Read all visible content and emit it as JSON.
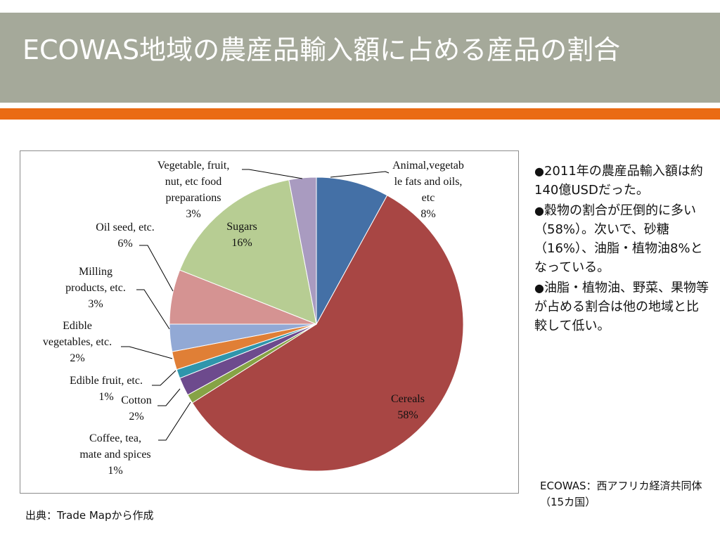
{
  "slide": {
    "title": "ECOWAS地域の農産品輸入額に占める産品の割合",
    "bullets": [
      "2011年の農産品輸入額は約140億USDだった。",
      "穀物の割合が圧倒的に多い（58%）。次いで、砂糖（16%）、油脂・植物油8%となっている。",
      "油脂・植物油、野菜、果物等が占める割合は他の地域と比較して低い。"
    ],
    "bullet_marker": "●",
    "note": "ECOWAS：西アフリカ経済共同体（15カ国）",
    "source": "出典：Trade Mapから作成"
  },
  "colors": {
    "title_bg": "#a5a99a",
    "accent": "#ea6b14"
  },
  "chart_data": {
    "type": "pie",
    "start": "12 o'clock, clockwise",
    "slices": [
      {
        "label": "Animal,vegetab\nle fats and oils,\netc",
        "pct_label": "8%",
        "value": 8,
        "color": "#4470a6"
      },
      {
        "label": "Cereals",
        "pct_label": "58%",
        "value": 58,
        "color": "#a84644"
      },
      {
        "label": "Coffee, tea,\nmate and spices",
        "pct_label": "1%",
        "value": 1,
        "color": "#86a345"
      },
      {
        "label": "Cotton",
        "pct_label": "2%",
        "value": 2,
        "color": "#6d4a8d"
      },
      {
        "label": "Edible fruit, etc.",
        "pct_label": "1%",
        "value": 1,
        "color": "#2f96ac"
      },
      {
        "label": "Edible\nvegetables, etc.",
        "pct_label": "2%",
        "value": 2,
        "color": "#e07f36"
      },
      {
        "label": "Milling\nproducts, etc.",
        "pct_label": "3%",
        "value": 3,
        "color": "#92a9d5"
      },
      {
        "label": "Oil seed, etc.",
        "pct_label": "6%",
        "value": 6,
        "color": "#d59392"
      },
      {
        "label": "Sugars",
        "pct_label": "16%",
        "value": 16,
        "color": "#b7cd93"
      },
      {
        "label": "Vegetable, fruit,\nnut, etc food\npreparations",
        "pct_label": "3%",
        "value": 3,
        "color": "#a99bc0"
      }
    ]
  }
}
